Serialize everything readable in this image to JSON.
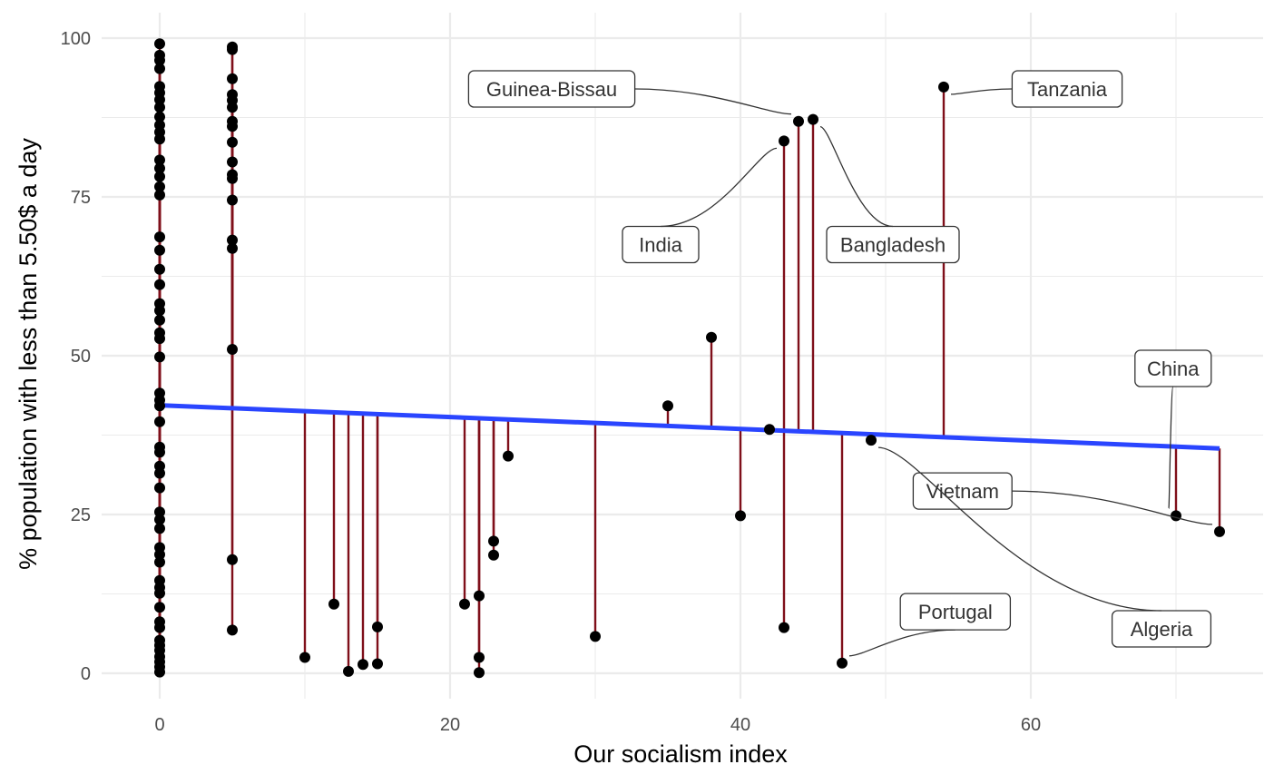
{
  "chart_data": {
    "type": "scatter",
    "xlabel": "Our socialism index",
    "ylabel": "% population with less than 5.50$ a day",
    "xlim": [
      -4,
      76
    ],
    "ylim": [
      -4,
      104
    ],
    "x_ticks": [
      0,
      20,
      40,
      60
    ],
    "y_ticks": [
      0,
      25,
      50,
      75,
      100
    ],
    "grid": true,
    "colors": {
      "point": "#000000",
      "residual": "#7f0f1a",
      "fit_line": "#2a45ff",
      "grid": "#ebebeb",
      "label_border": "#333333"
    },
    "fit_line": {
      "x": [
        0,
        73
      ],
      "y": [
        42.2,
        35.4
      ]
    },
    "points": [
      {
        "x": 0,
        "y": 99.1
      },
      {
        "x": 0,
        "y": 97.3
      },
      {
        "x": 0,
        "y": 96.5
      },
      {
        "x": 0,
        "y": 95.2
      },
      {
        "x": 0,
        "y": 92.4
      },
      {
        "x": 0,
        "y": 91.4
      },
      {
        "x": 0,
        "y": 90.3
      },
      {
        "x": 0,
        "y": 89.1
      },
      {
        "x": 0,
        "y": 87.6
      },
      {
        "x": 0,
        "y": 86.3
      },
      {
        "x": 0,
        "y": 85.2
      },
      {
        "x": 0,
        "y": 84.1
      },
      {
        "x": 0,
        "y": 80.8
      },
      {
        "x": 0,
        "y": 79.5
      },
      {
        "x": 0,
        "y": 78.2
      },
      {
        "x": 0,
        "y": 76.6
      },
      {
        "x": 0,
        "y": 75.3
      },
      {
        "x": 0,
        "y": 68.7
      },
      {
        "x": 0,
        "y": 66.6
      },
      {
        "x": 0,
        "y": 63.6
      },
      {
        "x": 0,
        "y": 61.2
      },
      {
        "x": 0,
        "y": 58.2
      },
      {
        "x": 0,
        "y": 57.1
      },
      {
        "x": 0,
        "y": 55.6
      },
      {
        "x": 0,
        "y": 53.6
      },
      {
        "x": 0,
        "y": 52.7
      },
      {
        "x": 0,
        "y": 49.8
      },
      {
        "x": 0,
        "y": 44.1
      },
      {
        "x": 0,
        "y": 43.0
      },
      {
        "x": 0,
        "y": 42.1
      },
      {
        "x": 0,
        "y": 39.6
      },
      {
        "x": 0,
        "y": 35.6
      },
      {
        "x": 0,
        "y": 34.8
      },
      {
        "x": 0,
        "y": 32.6
      },
      {
        "x": 0,
        "y": 31.5
      },
      {
        "x": 0,
        "y": 29.2
      },
      {
        "x": 0,
        "y": 25.4
      },
      {
        "x": 0,
        "y": 24.2
      },
      {
        "x": 0,
        "y": 22.8
      },
      {
        "x": 0,
        "y": 19.8
      },
      {
        "x": 0,
        "y": 18.7
      },
      {
        "x": 0,
        "y": 17.5
      },
      {
        "x": 0,
        "y": 14.6
      },
      {
        "x": 0,
        "y": 13.5
      },
      {
        "x": 0,
        "y": 12.6
      },
      {
        "x": 0,
        "y": 10.4
      },
      {
        "x": 0,
        "y": 8.1
      },
      {
        "x": 0,
        "y": 7.2
      },
      {
        "x": 0,
        "y": 5.2
      },
      {
        "x": 0,
        "y": 4.4
      },
      {
        "x": 0,
        "y": 3.6
      },
      {
        "x": 0,
        "y": 2.6
      },
      {
        "x": 0,
        "y": 1.8
      },
      {
        "x": 0,
        "y": 1.0
      },
      {
        "x": 0,
        "y": 0.2
      },
      {
        "x": 5,
        "y": 98.6
      },
      {
        "x": 5,
        "y": 98.2
      },
      {
        "x": 5,
        "y": 93.6
      },
      {
        "x": 5,
        "y": 91.1
      },
      {
        "x": 5,
        "y": 90.2
      },
      {
        "x": 5,
        "y": 89.1
      },
      {
        "x": 5,
        "y": 86.9
      },
      {
        "x": 5,
        "y": 86.1
      },
      {
        "x": 5,
        "y": 83.6
      },
      {
        "x": 5,
        "y": 80.5
      },
      {
        "x": 5,
        "y": 78.5
      },
      {
        "x": 5,
        "y": 77.9
      },
      {
        "x": 5,
        "y": 74.5
      },
      {
        "x": 5,
        "y": 68.2
      },
      {
        "x": 5,
        "y": 66.9
      },
      {
        "x": 5,
        "y": 51.0
      },
      {
        "x": 5,
        "y": 17.9
      },
      {
        "x": 5,
        "y": 6.8
      },
      {
        "x": 10,
        "y": 2.5
      },
      {
        "x": 12,
        "y": 10.9
      },
      {
        "x": 13,
        "y": 0.3
      },
      {
        "x": 14,
        "y": 1.4
      },
      {
        "x": 15,
        "y": 1.5
      },
      {
        "x": 15,
        "y": 7.3
      },
      {
        "x": 21,
        "y": 10.9
      },
      {
        "x": 22,
        "y": 12.2
      },
      {
        "x": 22,
        "y": 2.5
      },
      {
        "x": 22,
        "y": 0.1
      },
      {
        "x": 23,
        "y": 20.8
      },
      {
        "x": 23,
        "y": 18.6
      },
      {
        "x": 24,
        "y": 34.2
      },
      {
        "x": 30,
        "y": 5.8
      },
      {
        "x": 35,
        "y": 42.1
      },
      {
        "x": 38,
        "y": 52.9
      },
      {
        "x": 40,
        "y": 24.8
      },
      {
        "x": 42,
        "y": 38.4
      },
      {
        "x": 43,
        "y": 83.8
      },
      {
        "x": 43,
        "y": 7.2
      },
      {
        "x": 44,
        "y": 86.9
      },
      {
        "x": 45,
        "y": 87.2
      },
      {
        "x": 47,
        "y": 1.6
      },
      {
        "x": 49,
        "y": 36.7
      },
      {
        "x": 54,
        "y": 92.3
      },
      {
        "x": 70,
        "y": 24.8
      },
      {
        "x": 73,
        "y": 22.3
      }
    ],
    "annotations": [
      {
        "label": "Guinea-Bissau",
        "x": 44,
        "y": 86.9,
        "lx": 27,
        "ly": 92
      },
      {
        "label": "Tanzania",
        "x": 54,
        "y": 92.3,
        "lx": 62.5,
        "ly": 92
      },
      {
        "label": "India",
        "x": 43,
        "y": 83.8,
        "lx": 34.5,
        "ly": 67.5
      },
      {
        "label": "Bangladesh",
        "x": 45,
        "y": 87.2,
        "lx": 50.5,
        "ly": 67.5
      },
      {
        "label": "China",
        "x": 70,
        "y": 24.8,
        "lx": 69.8,
        "ly": 48
      },
      {
        "label": "Vietnam",
        "x": 73,
        "y": 22.3,
        "lx": 55.3,
        "ly": 28.7
      },
      {
        "label": "Algeria",
        "x": 49,
        "y": 36.7,
        "lx": 69,
        "ly": 7
      },
      {
        "label": "Portugal",
        "x": 47,
        "y": 1.6,
        "lx": 54.8,
        "ly": 9.7
      }
    ]
  }
}
